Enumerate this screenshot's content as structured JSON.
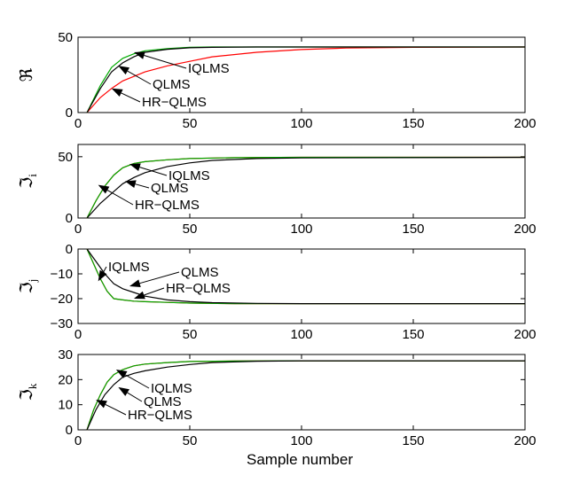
{
  "chart_data": [
    {
      "type": "line",
      "ylabel": "ℜ",
      "ylabel_sub": "",
      "xlim": [
        0,
        200
      ],
      "ylim": [
        0,
        50
      ],
      "xticks": [
        "0",
        "50",
        "100",
        "150",
        "200"
      ],
      "yticks": [
        "0",
        "50"
      ],
      "grid": false,
      "series": [
        {
          "color": "#000000",
          "x": [
            4,
            10,
            15,
            20,
            25,
            30,
            40,
            50,
            60,
            80,
            100,
            200
          ],
          "y": [
            0,
            16,
            27,
            33,
            37,
            40,
            42,
            43,
            43.3,
            43.5,
            43.5,
            43.5
          ]
        },
        {
          "color": "#00aa00",
          "x": [
            4,
            10,
            15,
            20,
            25,
            30,
            40,
            50,
            60,
            200
          ],
          "y": [
            0,
            18,
            30,
            36,
            39,
            41,
            42.5,
            43.3,
            43.5,
            43.5
          ]
        },
        {
          "color": "#ff0000",
          "x": [
            4,
            10,
            15,
            20,
            30,
            40,
            50,
            60,
            80,
            100,
            120,
            150,
            200
          ],
          "y": [
            0,
            10,
            16,
            21,
            27,
            31,
            34,
            37,
            40,
            41.8,
            42.8,
            43.3,
            43.5
          ]
        }
      ],
      "annotations": [
        {
          "text": "IQLMS",
          "to": [
            25,
            40
          ]
        },
        {
          "text": "QLMS",
          "to": [
            18,
            31
          ]
        },
        {
          "text": "HR−QLMS",
          "to": [
            15,
            16
          ]
        }
      ]
    },
    {
      "type": "line",
      "ylabel": "ℑ",
      "ylabel_sub": "i",
      "xlim": [
        0,
        200
      ],
      "ylim": [
        0,
        60
      ],
      "xticks": [
        "0",
        "50",
        "100",
        "150",
        "200"
      ],
      "yticks": [
        "0",
        "50"
      ],
      "grid": false,
      "series": [
        {
          "color": "#000000",
          "x": [
            4,
            10,
            15,
            20,
            25,
            30,
            40,
            50,
            60,
            80,
            100,
            200
          ],
          "y": [
            0,
            12,
            20,
            28,
            33,
            37,
            42,
            45,
            47,
            48.5,
            49,
            49.5
          ]
        },
        {
          "color": "#00aa00",
          "x": [
            4,
            8,
            12,
            16,
            20,
            25,
            30,
            40,
            50,
            70,
            100,
            200
          ],
          "y": [
            0,
            14,
            26,
            35,
            41,
            44.5,
            46,
            47.5,
            48.5,
            49.2,
            49.5,
            49.5
          ]
        },
        {
          "color": "#ff0000",
          "x": [
            4,
            8,
            12,
            16,
            20,
            25,
            30,
            40,
            50,
            70,
            100,
            200
          ],
          "y": [
            0,
            14,
            26,
            35,
            41,
            44.5,
            46,
            47.5,
            48.5,
            49.2,
            49.5,
            49.5
          ]
        }
      ],
      "annotations": [
        {
          "text": "IQLMS",
          "to": [
            23,
            44
          ]
        },
        {
          "text": "QLMS",
          "to": [
            21,
            30
          ]
        },
        {
          "text": "HR−QLMS",
          "to": [
            9,
            27
          ]
        }
      ]
    },
    {
      "type": "line",
      "ylabel": "ℑ",
      "ylabel_sub": "j",
      "xlim": [
        0,
        200
      ],
      "ylim": [
        -30,
        0
      ],
      "xticks": [
        "0",
        "50",
        "100",
        "150",
        "200"
      ],
      "yticks": [
        "0",
        "−10",
        "−20",
        "−30"
      ],
      "grid": false,
      "series": [
        {
          "color": "#000000",
          "x": [
            4,
            8,
            12,
            16,
            20,
            25,
            30,
            40,
            50,
            60,
            80,
            100,
            200
          ],
          "y": [
            0,
            -5,
            -10,
            -14,
            -16,
            -17.5,
            -19,
            -20.5,
            -21.2,
            -21.6,
            -21.9,
            -22,
            -22
          ]
        },
        {
          "color": "#00aa00",
          "x": [
            4,
            7,
            10,
            13,
            16,
            20,
            25,
            30,
            40,
            50,
            70,
            100,
            200
          ],
          "y": [
            0,
            -6,
            -12,
            -17,
            -20,
            -20.5,
            -21,
            -21.2,
            -21.5,
            -21.8,
            -22,
            -22,
            -22
          ]
        },
        {
          "color": "#ff0000",
          "x": [
            4,
            7,
            10,
            13,
            16,
            20,
            25,
            30,
            40,
            50,
            70,
            100,
            200
          ],
          "y": [
            0,
            -6,
            -12,
            -17,
            -20,
            -20.5,
            -21,
            -21.2,
            -21.5,
            -21.8,
            -22,
            -22,
            -22
          ]
        }
      ],
      "annotations": [
        {
          "text": "IQLMS",
          "to": [
            9,
            -13
          ]
        },
        {
          "text": "QLMS",
          "to": [
            23,
            -15
          ]
        },
        {
          "text": "HR−QLMS",
          "to": [
            25,
            -20
          ]
        }
      ]
    },
    {
      "type": "line",
      "ylabel": "ℑ",
      "ylabel_sub": "k",
      "xlim": [
        0,
        200
      ],
      "ylim": [
        0,
        30
      ],
      "xticks": [
        "0",
        "50",
        "100",
        "150",
        "200"
      ],
      "yticks": [
        "0",
        "10",
        "20",
        "30"
      ],
      "grid": false,
      "series": [
        {
          "color": "#000000",
          "x": [
            4,
            8,
            12,
            16,
            20,
            25,
            30,
            40,
            50,
            60,
            80,
            100,
            200
          ],
          "y": [
            0,
            8,
            14,
            18,
            21,
            22.5,
            23.5,
            25,
            26,
            26.8,
            27.3,
            27.5,
            27.5
          ]
        },
        {
          "color": "#00aa00",
          "x": [
            4,
            7,
            10,
            13,
            16,
            20,
            25,
            30,
            40,
            50,
            70,
            100,
            200
          ],
          "y": [
            0,
            8,
            14,
            19,
            22,
            24,
            25.5,
            26.2,
            26.8,
            27.2,
            27.4,
            27.5,
            27.5
          ]
        },
        {
          "color": "#ff0000",
          "x": [
            4,
            7,
            10,
            13,
            16,
            20,
            25,
            30,
            40,
            50,
            70,
            100,
            200
          ],
          "y": [
            0,
            8,
            14,
            19,
            22,
            24,
            25.5,
            26.2,
            26.8,
            27.2,
            27.4,
            27.5,
            27.5
          ]
        }
      ],
      "annotations": [
        {
          "text": "IQLMS",
          "to": [
            17,
            24
          ]
        },
        {
          "text": "QLMS",
          "to": [
            18,
            17
          ]
        },
        {
          "text": "HR−QLMS",
          "to": [
            8,
            12
          ]
        }
      ]
    }
  ],
  "xlabel": "Sample number"
}
